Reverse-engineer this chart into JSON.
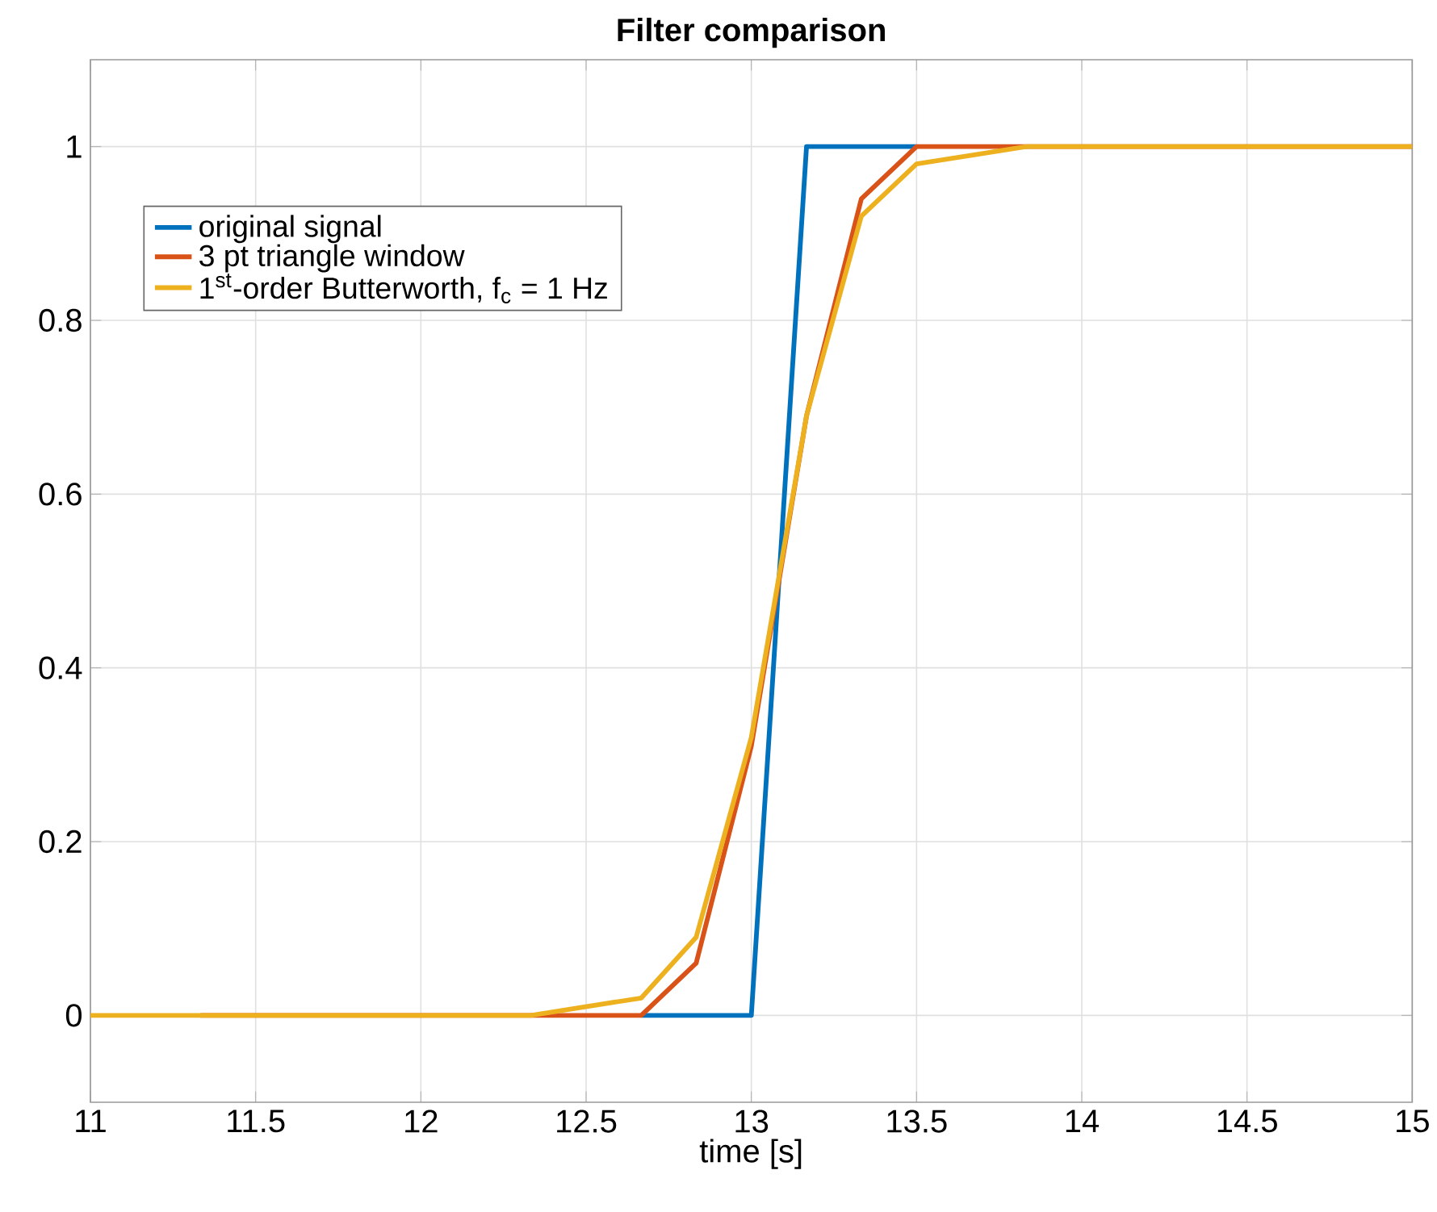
{
  "chart_data": {
    "type": "line",
    "title": "Filter comparison",
    "xlabel": "time [s]",
    "x": [
      11,
      11.167,
      11.333,
      11.5,
      11.667,
      11.833,
      12,
      12.167,
      12.333,
      12.5,
      12.667,
      12.833,
      13,
      13.167,
      13.333,
      13.5,
      13.667,
      13.833,
      14,
      14.167,
      14.333,
      14.5,
      14.667,
      14.833,
      15
    ],
    "series": [
      {
        "name": "original signal",
        "color": "#0072bd",
        "values": [
          null,
          null,
          null,
          null,
          null,
          null,
          null,
          null,
          null,
          null,
          0,
          0,
          0,
          1,
          1,
          1,
          null,
          null,
          null,
          null,
          null,
          null,
          null,
          null,
          null
        ]
      },
      {
        "name": "3 pt triangle window",
        "color": "#d95319",
        "values": [
          null,
          null,
          0,
          0,
          0,
          0,
          0,
          0,
          0,
          0,
          0,
          0.06,
          0.31,
          0.69,
          0.94,
          1,
          1,
          1,
          1,
          1,
          1,
          1,
          1,
          1,
          1
        ]
      },
      {
        "name": "1$^{st}$-order Butterworth, f$_{c}$ = 1 Hz",
        "color": "#edb120",
        "values": [
          0,
          0,
          0,
          0,
          0,
          0,
          0,
          0,
          0,
          0.01,
          0.02,
          0.09,
          0.32,
          0.69,
          0.92,
          0.98,
          0.99,
          1,
          1,
          1,
          1,
          1,
          1,
          1,
          1
        ]
      }
    ],
    "xlim": [
      11,
      15
    ],
    "ylim": [
      -0.1,
      1.1
    ],
    "xticks": [
      11,
      11.5,
      12,
      12.5,
      13,
      13.5,
      14,
      14.5,
      15
    ],
    "yticks": [
      0,
      0.2,
      0.4,
      0.6,
      0.8,
      1
    ],
    "grid": true,
    "legend": "top left",
    "line_style": "solid",
    "marker": "none"
  }
}
